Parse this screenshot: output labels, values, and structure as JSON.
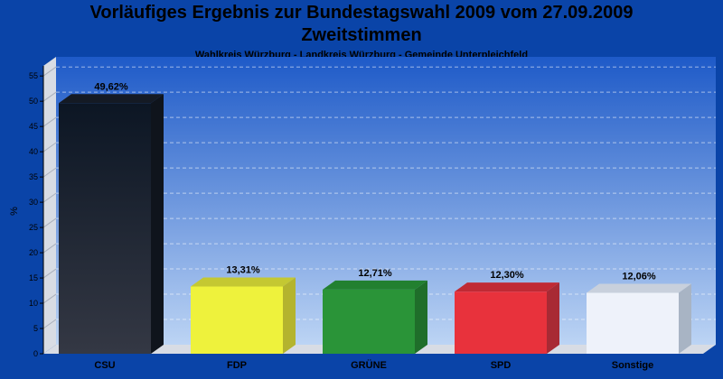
{
  "chart_data": {
    "type": "bar",
    "title": "Vorläufiges Ergebnis zur Bundestagswahl 2009 vom 27.09.2009",
    "title_line2": "Zweitstimmen",
    "subtitle": "Wahlkreis Würzburg - Landkreis Würzburg - Gemeinde Unterpleichfeld",
    "ylabel": "%",
    "ylim": [
      0,
      57
    ],
    "yticks": [
      0,
      5,
      10,
      15,
      20,
      25,
      30,
      35,
      40,
      45,
      50,
      55
    ],
    "grid": true,
    "categories": [
      "CSU",
      "FDP",
      "GRÜNE",
      "SPD",
      "Sonstige"
    ],
    "values": [
      49.62,
      13.31,
      12.71,
      12.3,
      12.06
    ],
    "value_labels": [
      "49,62%",
      "13,31%",
      "12,71%",
      "12,30%",
      "12,06%"
    ],
    "colors": {
      "front": [
        "#1f242e",
        "#eef23c",
        "#2a9438",
        "#e8323c",
        "#eef2fa"
      ],
      "side": [
        "#0f141c",
        "#b4b42e",
        "#1f6e2a",
        "#a82a34",
        "#a8b4c4"
      ],
      "top": [
        "#141a24",
        "#c4c832",
        "#228030",
        "#c02a34",
        "#c8d0dc"
      ]
    },
    "background": "#0a44a8"
  }
}
